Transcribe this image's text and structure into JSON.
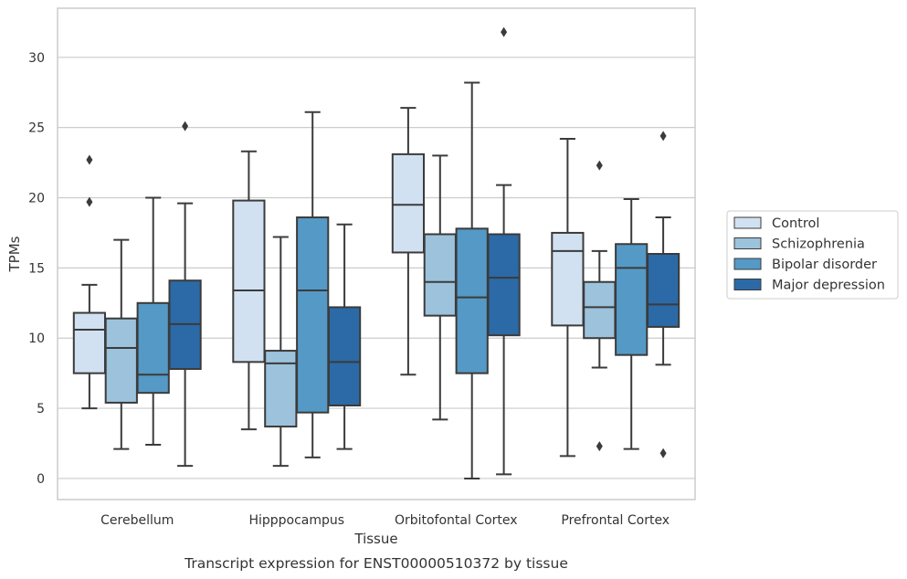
{
  "chart_data": {
    "type": "box",
    "caption": "Transcript expression for ENST00000510372 by tissue",
    "xlabel": "Tissue",
    "ylabel": "TPMs",
    "ylim": [
      -1.5,
      33.5
    ],
    "yticks": [
      0,
      5,
      10,
      15,
      20,
      25,
      30
    ],
    "grid": "horizontal",
    "legend_position": "right",
    "categories": [
      "Cerebellum",
      "Hipppocampus",
      "Orbitofontal Cortex",
      "Prefrontal Cortex"
    ],
    "series": [
      {
        "name": "Control",
        "color": "#d1e1f1",
        "boxes": [
          {
            "min": 5.0,
            "q1": 7.5,
            "median": 10.6,
            "q3": 11.8,
            "max": 13.8,
            "outliers": [
              19.7,
              22.7
            ]
          },
          {
            "min": 3.5,
            "q1": 8.3,
            "median": 13.4,
            "q3": 19.8,
            "max": 23.3,
            "outliers": []
          },
          {
            "min": 7.4,
            "q1": 16.1,
            "median": 19.5,
            "q3": 23.1,
            "max": 26.4,
            "outliers": []
          },
          {
            "min": 1.6,
            "q1": 10.9,
            "median": 16.2,
            "q3": 17.5,
            "max": 24.2,
            "outliers": []
          }
        ]
      },
      {
        "name": "Schizophrenia",
        "color": "#9cc2dc",
        "boxes": [
          {
            "min": 2.1,
            "q1": 5.4,
            "median": 9.3,
            "q3": 11.4,
            "max": 17.0,
            "outliers": []
          },
          {
            "min": 0.9,
            "q1": 3.7,
            "median": 8.2,
            "q3": 9.1,
            "max": 17.2,
            "outliers": []
          },
          {
            "min": 4.2,
            "q1": 11.6,
            "median": 14.0,
            "q3": 17.4,
            "max": 23.0,
            "outliers": []
          },
          {
            "min": 7.9,
            "q1": 10.0,
            "median": 12.2,
            "q3": 14.0,
            "max": 16.2,
            "outliers": [
              2.3,
              22.3
            ]
          }
        ]
      },
      {
        "name": "Bipolar disorder",
        "color": "#5599c6",
        "boxes": [
          {
            "min": 2.4,
            "q1": 6.1,
            "median": 7.4,
            "q3": 12.5,
            "max": 20.0,
            "outliers": []
          },
          {
            "min": 1.5,
            "q1": 4.7,
            "median": 13.4,
            "q3": 18.6,
            "max": 26.1,
            "outliers": []
          },
          {
            "min": 0.0,
            "q1": 7.5,
            "median": 12.9,
            "q3": 17.8,
            "max": 28.2,
            "outliers": []
          },
          {
            "min": 2.1,
            "q1": 8.8,
            "median": 15.0,
            "q3": 16.7,
            "max": 19.9,
            "outliers": []
          }
        ]
      },
      {
        "name": "Major depression",
        "color": "#2b6aa6",
        "boxes": [
          {
            "min": 0.9,
            "q1": 7.8,
            "median": 11.0,
            "q3": 14.1,
            "max": 19.6,
            "outliers": [
              25.1
            ]
          },
          {
            "min": 2.1,
            "q1": 5.2,
            "median": 8.3,
            "q3": 12.2,
            "max": 18.1,
            "outliers": []
          },
          {
            "min": 0.3,
            "q1": 10.2,
            "median": 14.3,
            "q3": 17.4,
            "max": 20.9,
            "outliers": [
              31.8
            ]
          },
          {
            "min": 8.1,
            "q1": 10.8,
            "median": 12.4,
            "q3": 16.0,
            "max": 18.6,
            "outliers": [
              1.8,
              24.4
            ]
          }
        ]
      }
    ]
  }
}
